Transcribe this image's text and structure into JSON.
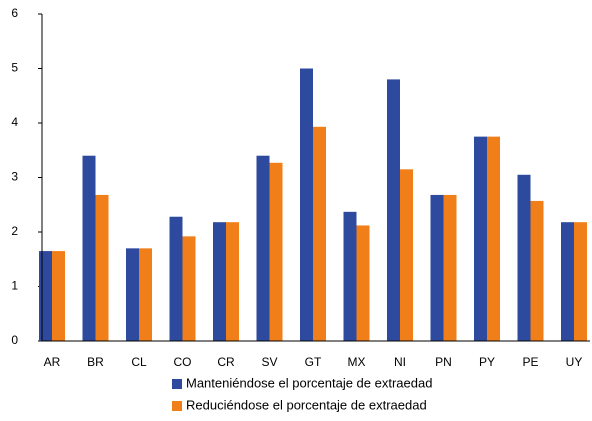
{
  "chart_data": {
    "type": "bar",
    "categories": [
      "AR",
      "BR",
      "CL",
      "CO",
      "CR",
      "SV",
      "GT",
      "MX",
      "NI",
      "PN",
      "PY",
      "PE",
      "UY"
    ],
    "series": [
      {
        "name": "Manteniéndose el porcentaje de extraedad",
        "color": "#2e4a9e",
        "values": [
          1.65,
          3.4,
          1.7,
          2.28,
          2.18,
          3.4,
          5.0,
          2.37,
          4.8,
          2.68,
          3.75,
          3.05,
          2.18
        ]
      },
      {
        "name": "Reduciéndose el porcentaje de extraedad",
        "color": "#f07f1a",
        "values": [
          1.65,
          2.68,
          1.7,
          1.92,
          2.18,
          3.27,
          3.93,
          2.12,
          3.15,
          2.68,
          3.75,
          2.57,
          2.18
        ]
      }
    ],
    "ylim": [
      0,
      6
    ],
    "yticks": [
      0,
      1,
      2,
      3,
      4,
      5,
      6
    ],
    "grid": false,
    "legend": "bottom"
  }
}
